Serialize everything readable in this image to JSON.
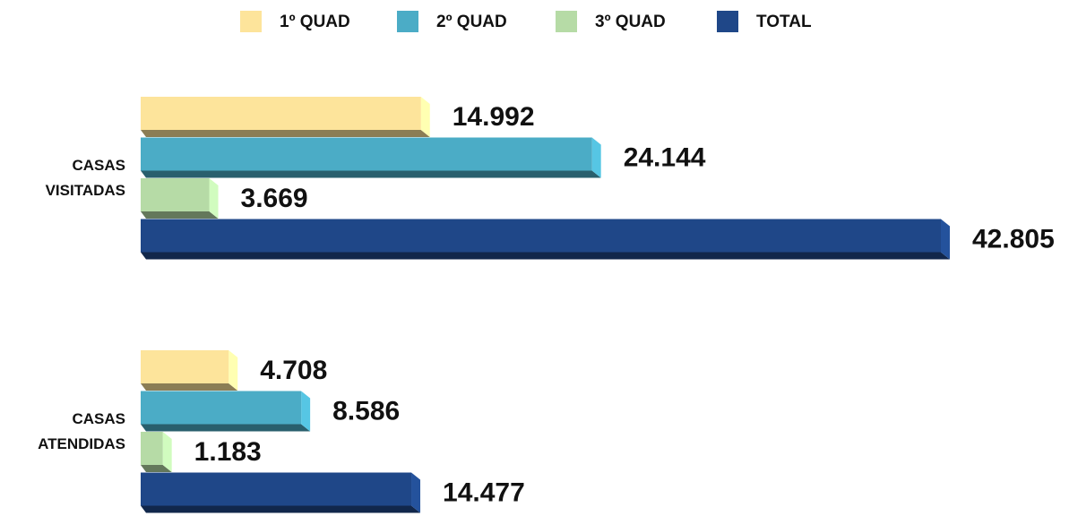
{
  "chart_data": {
    "type": "barh",
    "categories": [
      "CASAS VISITADAS",
      "CASAS ATENDIDAS"
    ],
    "series": [
      {
        "name": "1º QUAD",
        "color": "#fde49b",
        "values": [
          14992,
          4708
        ],
        "value_labels": [
          "14.992",
          "4.708"
        ]
      },
      {
        "name": "2º QUAD",
        "color": "#4bacc6",
        "values": [
          24144,
          8586
        ],
        "value_labels": [
          "24.144",
          "8.586"
        ]
      },
      {
        "name": "3º QUAD",
        "color": "#b6dba6",
        "values": [
          3669,
          1183
        ],
        "value_labels": [
          "3.669",
          "1.183"
        ]
      },
      {
        "name": "TOTAL",
        "color": "#1f4788",
        "values": [
          42805,
          14477
        ],
        "value_labels": [
          "42.805",
          "14.477"
        ]
      }
    ],
    "legend": "top"
  }
}
